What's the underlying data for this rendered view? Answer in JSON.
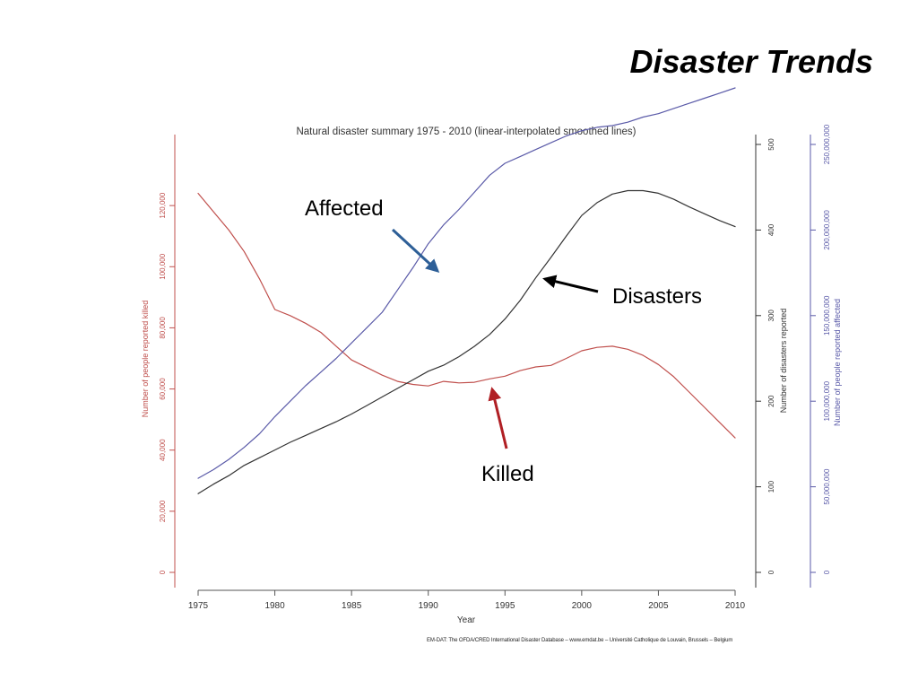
{
  "slide": {
    "title": "Disaster Trends",
    "source": "EM-DAT: The OFDA/CRED International Disaster Database – www.emdat.be – Université Catholique de Louvain, Brussels – Belgium"
  },
  "chart_data": {
    "type": "line",
    "title": "Natural disaster summary 1975 - 2010 (linear-interpolated smoothed lines)",
    "xlabel": "Year",
    "xlim": [
      1975,
      2010
    ],
    "x_ticks": [
      1975,
      1980,
      1985,
      1990,
      1995,
      2000,
      2005,
      2010
    ],
    "grid": false,
    "axes": {
      "killed": {
        "label": "Number of people reported killed",
        "side": "left",
        "color": "#c0504d",
        "ylim": [
          0,
          140000
        ],
        "ticks": [
          0,
          20000,
          40000,
          60000,
          80000,
          100000,
          120000
        ],
        "tick_labels": [
          "0",
          "20,000",
          "40,000",
          "60,000",
          "80,000",
          "100,000",
          "120,000"
        ]
      },
      "disasters": {
        "label": "Number of disasters reported",
        "side": "right",
        "color": "#333333",
        "ylim": [
          0,
          500
        ],
        "ticks": [
          0,
          100,
          200,
          300,
          400,
          500
        ],
        "tick_labels": [
          "0",
          "100",
          "200",
          "300",
          "400",
          "500"
        ]
      },
      "affected": {
        "label": "Number of people reported affected",
        "side": "right-outer",
        "color": "#5a5aa8",
        "ylim": [
          0,
          250000000
        ],
        "ticks": [
          0,
          50000000,
          100000000,
          150000000,
          200000000,
          250000000
        ],
        "tick_labels": [
          "0",
          "50,000,000",
          "100,000,000",
          "150,000,000",
          "200,000,000",
          "250,000,000"
        ]
      }
    },
    "series": [
      {
        "name": "Killed",
        "axis": "killed",
        "color": "#c0504d",
        "x": [
          1975,
          1976,
          1977,
          1978,
          1979,
          1980,
          1981,
          1982,
          1983,
          1984,
          1985,
          1986,
          1987,
          1988,
          1989,
          1990,
          1991,
          1992,
          1993,
          1994,
          1995,
          1996,
          1997,
          1998,
          1999,
          2000,
          2001,
          2002,
          2003,
          2004,
          2005,
          2006,
          2007,
          2008,
          2009,
          2010
        ],
        "values": [
          124000,
          118000,
          112000,
          105000,
          96000,
          86000,
          84000,
          81500,
          78500,
          74000,
          69500,
          67000,
          64500,
          62500,
          61500,
          61000,
          62500,
          62000,
          62200,
          63300,
          64200,
          66000,
          67200,
          67700,
          70000,
          72500,
          73600,
          74000,
          73000,
          71000,
          68000,
          64000,
          59000,
          54000,
          49000,
          44000
        ]
      },
      {
        "name": "Disasters",
        "axis": "disasters",
        "color": "#333333",
        "x": [
          1975,
          1976,
          1977,
          1978,
          1979,
          1980,
          1981,
          1982,
          1983,
          1984,
          1985,
          1986,
          1987,
          1988,
          1989,
          1990,
          1991,
          1992,
          1993,
          1994,
          1995,
          1996,
          1997,
          1998,
          1999,
          2000,
          2001,
          2002,
          2003,
          2004,
          2005,
          2006,
          2007,
          2008,
          2009,
          2010
        ],
        "values": [
          92,
          103,
          113,
          125,
          134,
          143,
          152,
          160,
          168,
          176,
          185,
          195,
          205,
          215,
          225,
          235,
          242,
          252,
          264,
          278,
          296,
          318,
          344,
          368,
          393,
          417,
          432,
          442,
          446,
          446,
          443,
          436,
          427,
          419,
          411,
          404
        ]
      },
      {
        "name": "Affected",
        "axis": "affected",
        "color": "#5a5aa8",
        "x": [
          1975,
          1976,
          1977,
          1978,
          1979,
          1980,
          1981,
          1982,
          1983,
          1984,
          1985,
          1986,
          1987,
          1988,
          1989,
          1990,
          1991,
          1992,
          1993,
          1994,
          1995,
          1996,
          1997,
          1998,
          1999,
          2000,
          2001,
          2002,
          2003,
          2004,
          2005,
          2006,
          2007,
          2008,
          2009,
          2010
        ],
        "values": [
          55000000,
          60000000,
          66000000,
          73000000,
          81000000,
          91000000,
          100000000,
          109000000,
          117000000,
          125000000,
          134000000,
          143000000,
          152000000,
          165000000,
          178000000,
          192000000,
          203000000,
          212000000,
          222000000,
          232000000,
          239000000,
          243000000,
          247000000,
          251000000,
          255000000,
          258000000,
          260000000,
          261000000,
          263000000,
          266000000,
          268000000,
          271000000,
          274000000,
          277000000,
          280000000,
          283000000
        ]
      }
    ],
    "annotations": [
      {
        "text": "Affected",
        "series": "Affected",
        "color": "#2e5f97"
      },
      {
        "text": "Disasters",
        "series": "Disasters",
        "color": "#000000"
      },
      {
        "text": "Killed",
        "series": "Killed",
        "color": "#b01f24"
      }
    ]
  }
}
